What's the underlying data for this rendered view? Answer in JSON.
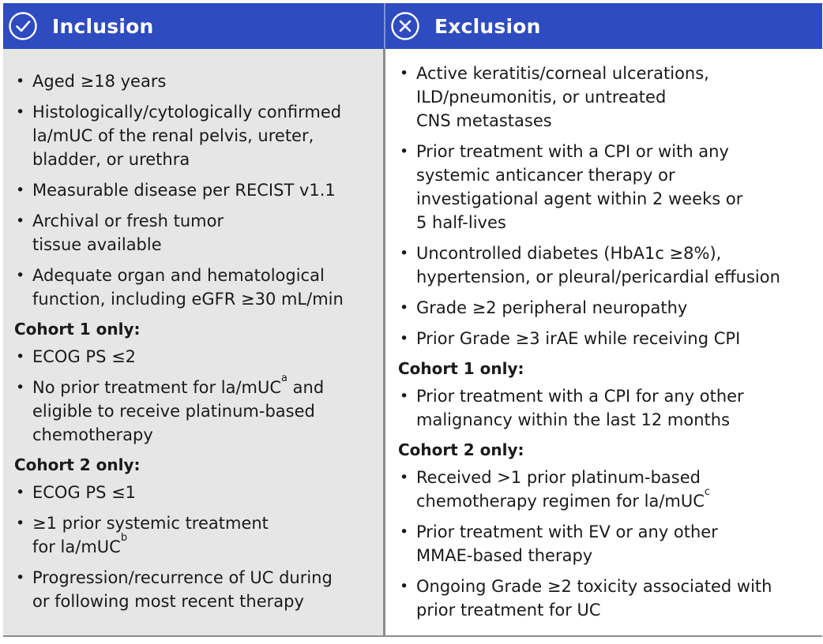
{
  "inclusion": {
    "title": "Inclusion",
    "icon": "check-circle-icon",
    "general": [
      {
        "text": "Aged ≥18 years"
      },
      {
        "text": "Histologically/cytologically confirmed\nla/mUC of the renal pelvis, ureter,\nbladder, or urethra"
      },
      {
        "text": "Measurable disease per RECIST v1.1"
      },
      {
        "text": "Archival or fresh tumor\ntissue available"
      },
      {
        "text": "Adequate organ and hematological\nfunction, including eGFR ≥30 mL/min"
      }
    ],
    "cohort1": {
      "heading": "Cohort 1 only:",
      "items": [
        {
          "text": "ECOG PS ≤2"
        },
        {
          "text": "No prior treatment for la/mUC",
          "sup": "a",
          "after": " and\neligible to receive platinum-based\nchemotherapy"
        }
      ]
    },
    "cohort2": {
      "heading": "Cohort 2 only:",
      "items": [
        {
          "text": "ECOG PS ≤1"
        },
        {
          "text": "≥1 prior systemic treatment\nfor la/mUC",
          "sup": "b"
        },
        {
          "text": "Progression/recurrence of UC during\nor following most recent therapy"
        }
      ]
    }
  },
  "exclusion": {
    "title": "Exclusion",
    "icon": "x-circle-icon",
    "general": [
      {
        "text": "Active keratitis/corneal ulcerations,\nILD/pneumonitis, or untreated\nCNS metastases"
      },
      {
        "text": "Prior treatment with a CPI or with any\nsystemic anticancer therapy or\ninvestigational agent within 2 weeks or\n5 half-lives"
      },
      {
        "text": "Uncontrolled diabetes (HbA1c ≥8%),\nhypertension, or pleural/pericardial effusion"
      },
      {
        "text": "Grade ≥2 peripheral neuropathy"
      },
      {
        "text": "Prior Grade ≥3 irAE while receiving CPI"
      }
    ],
    "cohort1": {
      "heading": "Cohort 1 only:",
      "items": [
        {
          "text": "Prior treatment with a CPI for any other\nmalignancy within the last 12 months"
        }
      ]
    },
    "cohort2": {
      "heading": "Cohort 2 only:",
      "items": [
        {
          "text": "Received >1 prior platinum-based\nchemotherapy regimen for la/mUC",
          "sup": "c"
        },
        {
          "text": "Prior treatment with EV or any other\nMMAE-based therapy"
        },
        {
          "text": "Ongoing Grade ≥2 toxicity associated with\nprior treatment for UC"
        }
      ]
    }
  },
  "colors": {
    "header_bg": "#2e4bbf",
    "header_text": "#ffffff",
    "inclusion_bg": "#e6e6e6",
    "exclusion_bg": "#ffffff",
    "text": "#1a1a1a"
  }
}
